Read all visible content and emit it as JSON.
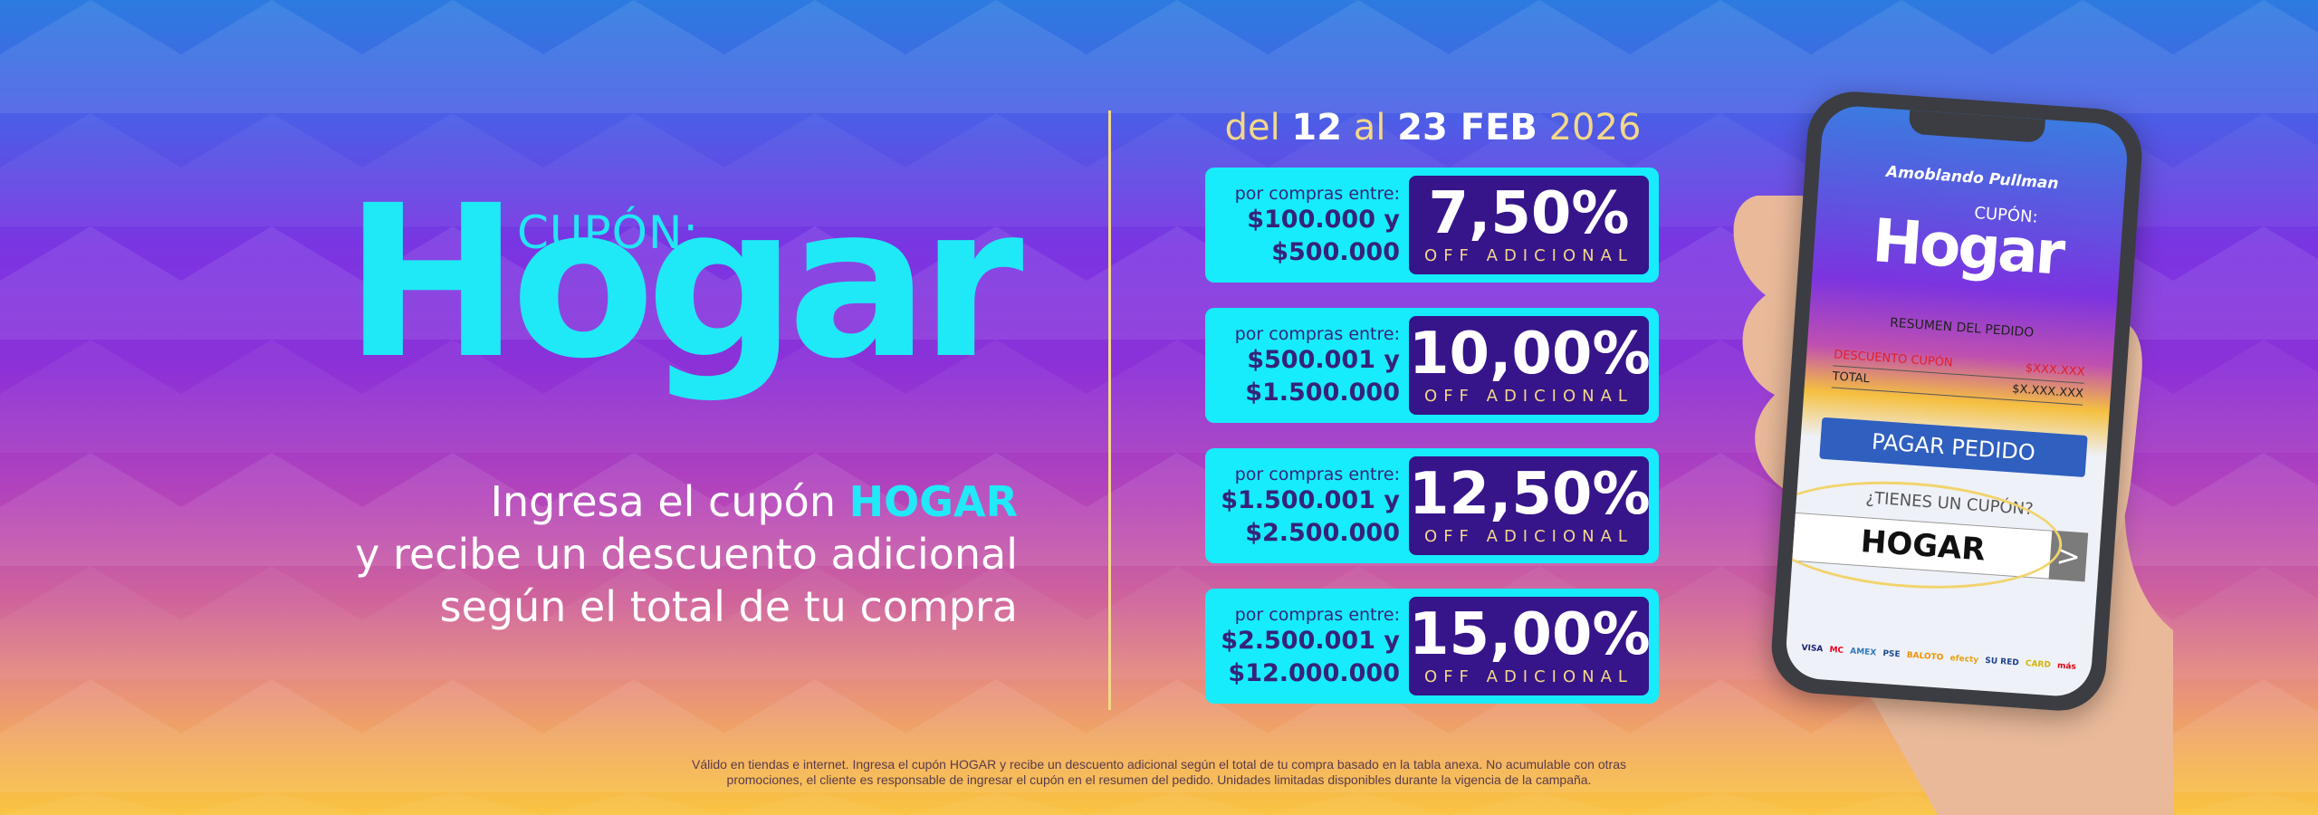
{
  "headline": {
    "cupon_label": "CUPÓN:",
    "title": "Hogar"
  },
  "promo": {
    "line1_prefix": "Ingresa el cupón ",
    "line1_code": "HOGAR",
    "line2": "y recibe un descuento adicional",
    "line3": "según el total de tu compra"
  },
  "date": {
    "del": "del ",
    "start": "12",
    "al": " al ",
    "end": "23 FEB",
    "year": " 2026"
  },
  "tiers": [
    {
      "label": "por compras entre:",
      "min": "$100.000 y",
      "max": "$500.000",
      "discount": "7,50%",
      "suffix": "OFF ADICIONAL"
    },
    {
      "label": "por compras entre:",
      "min": "$500.001 y",
      "max": "$1.500.000",
      "discount": "10,00%",
      "suffix": "OFF ADICIONAL"
    },
    {
      "label": "por compras entre:",
      "min": "$1.500.001 y",
      "max": "$2.500.000",
      "discount": "12,50%",
      "suffix": "OFF ADICIONAL"
    },
    {
      "label": "por compras entre:",
      "min": "$2.500.001 y",
      "max": "$12.000.000",
      "discount": "15,00%",
      "suffix": "OFF ADICIONAL"
    }
  ],
  "phone": {
    "brand": "Amoblando  Pullman",
    "cupon_label": "CUPÓN:",
    "title": "Hogar",
    "summary_title": "RESUMEN DEL PEDIDO",
    "discount_label": "DESCUENTO CUPÓN",
    "discount_value": "$XXX.XXX",
    "total_label": "TOTAL",
    "total_value": "$X.XXX.XXX",
    "pay_button": "PAGAR PEDIDO",
    "coupon_question": "¿TIENES UN CUPÓN?",
    "coupon_value": "HOGAR",
    "go_icon": "chevron-right",
    "payment_methods": [
      "VISA",
      "MC",
      "AMEX",
      "PSE",
      "BALOTO",
      "efecty",
      "SU RED",
      "CARD",
      "más"
    ]
  },
  "disclaimer": {
    "line1": "Válido en tiendas e internet. Ingresa el cupón HOGAR y recibe un descuento adicional según el total de tu compra basado en la tabla anexa. No acumulable con otras",
    "line2": "promociones, el cliente es responsable de ingresar el cupón en el resumen del pedido. Unidades limitadas disponibles durante la vigencia de la campaña."
  },
  "colors": {
    "accent_cyan": "#16ecfb",
    "dark_purple": "#36148a",
    "gold": "#f3d889"
  }
}
